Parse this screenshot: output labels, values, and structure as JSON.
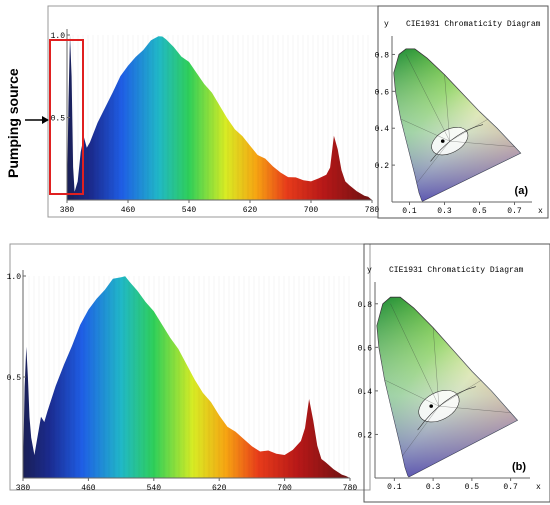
{
  "annotation": {
    "pumping_source": "Pumping source"
  },
  "chart_data": [
    {
      "type": "area",
      "panel_label": "(a)",
      "x_ticks": [
        "380",
        "460",
        "540",
        "620",
        "700",
        "780"
      ],
      "y_ticks": [
        "1.0",
        "0.5"
      ],
      "xlim": [
        380,
        780
      ],
      "ylim": [
        0,
        1.0
      ],
      "grid": false,
      "series": [
        {
          "x": [
            380,
            382,
            384,
            386,
            388,
            390,
            394,
            398,
            402,
            406,
            410,
            420,
            430,
            440,
            450,
            460,
            470,
            480,
            490,
            495,
            500,
            505,
            510,
            520,
            530,
            540,
            550,
            560,
            570,
            580,
            590,
            600,
            610,
            620,
            630,
            640,
            650,
            660,
            670,
            680,
            690,
            700,
            710,
            720,
            725,
            730,
            735,
            740,
            745,
            750,
            760,
            770,
            775,
            780
          ],
          "y": [
            0.02,
            0.6,
            1.0,
            0.75,
            0.2,
            0.05,
            0.12,
            0.28,
            0.38,
            0.32,
            0.36,
            0.46,
            0.56,
            0.66,
            0.74,
            0.81,
            0.87,
            0.92,
            0.96,
            0.98,
            1.0,
            0.98,
            0.97,
            0.93,
            0.88,
            0.83,
            0.77,
            0.71,
            0.64,
            0.57,
            0.5,
            0.44,
            0.38,
            0.33,
            0.28,
            0.24,
            0.2,
            0.17,
            0.15,
            0.13,
            0.12,
            0.12,
            0.12,
            0.15,
            0.2,
            0.4,
            0.3,
            0.18,
            0.12,
            0.08,
            0.05,
            0.03,
            0.02,
            0.0
          ]
        }
      ]
    },
    {
      "type": "area",
      "panel_label": "(b)",
      "x_ticks": [
        "380",
        "460",
        "540",
        "620",
        "700",
        "780"
      ],
      "y_ticks": [
        "1.0",
        "0.5"
      ],
      "xlim": [
        380,
        780
      ],
      "ylim": [
        0,
        1.0
      ],
      "grid": false,
      "series": [
        {
          "x": [
            380,
            382,
            384,
            386,
            388,
            390,
            394,
            398,
            402,
            406,
            410,
            420,
            430,
            440,
            450,
            460,
            470,
            480,
            490,
            495,
            500,
            505,
            510,
            520,
            530,
            540,
            550,
            560,
            570,
            580,
            590,
            600,
            610,
            620,
            630,
            640,
            650,
            660,
            670,
            680,
            690,
            700,
            710,
            720,
            725,
            730,
            735,
            740,
            745,
            750,
            760,
            770,
            775,
            780
          ],
          "y": [
            0.02,
            0.45,
            0.65,
            0.5,
            0.3,
            0.2,
            0.12,
            0.2,
            0.3,
            0.28,
            0.34,
            0.45,
            0.56,
            0.66,
            0.75,
            0.83,
            0.89,
            0.94,
            0.98,
            0.99,
            1.0,
            0.99,
            0.97,
            0.93,
            0.88,
            0.82,
            0.76,
            0.7,
            0.63,
            0.56,
            0.49,
            0.43,
            0.37,
            0.31,
            0.26,
            0.22,
            0.19,
            0.16,
            0.14,
            0.13,
            0.12,
            0.12,
            0.13,
            0.18,
            0.25,
            0.4,
            0.28,
            0.16,
            0.1,
            0.07,
            0.04,
            0.02,
            0.01,
            0.0
          ]
        }
      ]
    },
    {
      "type": "diagram",
      "panel_label": "(a)",
      "title": "CIE1931 Chromaticity Diagram",
      "x_axis_label": "x",
      "y_axis_label": "y",
      "x_ticks": [
        "0.1",
        "0.3",
        "0.5",
        "0.7"
      ],
      "y_ticks": [
        "0.8",
        "0.6",
        "0.4",
        "0.2"
      ]
    },
    {
      "type": "diagram",
      "panel_label": "(b)",
      "title": "CIE1931 Chromaticity Diagram",
      "x_axis_label": "x",
      "y_axis_label": "y",
      "x_ticks": [
        "0.1",
        "0.3",
        "0.5",
        "0.7"
      ],
      "y_ticks": [
        "0.8",
        "0.6",
        "0.4",
        "0.2"
      ]
    }
  ]
}
